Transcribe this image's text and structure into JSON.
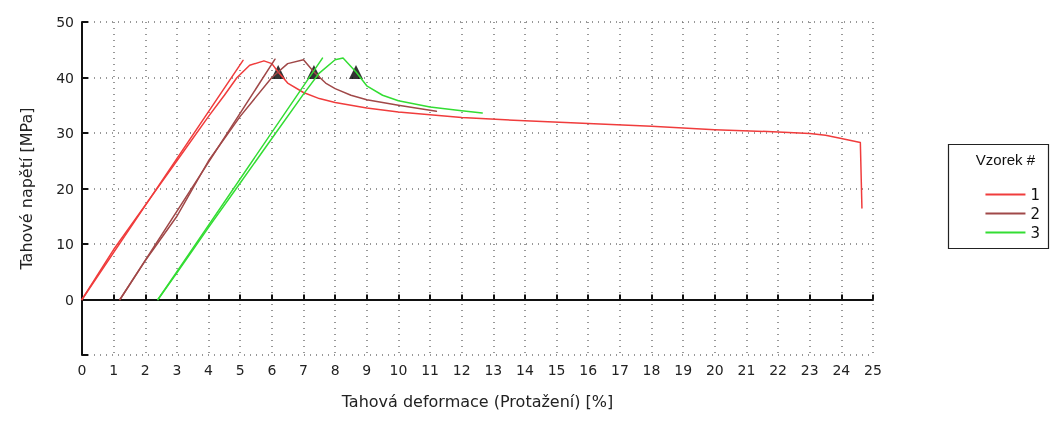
{
  "chart_data": {
    "type": "line",
    "xlabel": "Tahová deformace (Protažení) [%]",
    "ylabel": "Tahové napětí [MPa]",
    "legend_title": "Vzorek #",
    "xlim": [
      0,
      25
    ],
    "xticks": [
      0,
      1,
      2,
      3,
      4,
      5,
      6,
      7,
      8,
      9,
      10,
      11,
      12,
      13,
      14,
      15,
      16,
      17,
      18,
      19,
      20,
      21,
      22,
      23,
      24,
      25
    ],
    "ylim": [
      -10,
      50
    ],
    "yticks": [
      {
        "value": -10,
        "label": null
      },
      0,
      10,
      20,
      30,
      40,
      50
    ],
    "grid": true,
    "legend": "right",
    "marker": "none",
    "line_style": "solid",
    "series": [
      {
        "name": "1",
        "color": "#f03c3c",
        "x": [
          0,
          1,
          2,
          3,
          4,
          4.5,
          4.9,
          5.3,
          5.75,
          6.0,
          6.2,
          6.5,
          7,
          7.5,
          8,
          9,
          10,
          12,
          14,
          16,
          18,
          20,
          22,
          23,
          23.5,
          24,
          24.6,
          24.65
        ],
        "values": [
          0,
          9,
          17,
          25,
          33,
          36.8,
          40,
          42.2,
          43,
          42.5,
          41,
          39,
          37.3,
          36.2,
          35.5,
          34.5,
          33.8,
          32.8,
          32.2,
          31.7,
          31.2,
          30.6,
          30.2,
          29.9,
          29.6,
          29,
          28.3,
          16.5
        ]
      },
      {
        "color": "#f03c3c",
        "x": [
          0,
          5.09
        ],
        "values": [
          0,
          43.1
        ]
      },
      {
        "name": "2",
        "color": "#a04848",
        "x": [
          1.2,
          2,
          3,
          3.2,
          4,
          5,
          6,
          6.5,
          7,
          7.33,
          7.7,
          8,
          8.5,
          9,
          10,
          11.2
        ],
        "values": [
          0,
          7,
          15,
          17,
          25,
          33,
          40,
          42.5,
          43.2,
          41,
          39,
          38,
          36.8,
          36,
          35,
          33.9
        ]
      },
      {
        "color": "#a04848",
        "x": [
          1.2,
          6.1
        ],
        "values": [
          0,
          43.3
        ]
      },
      {
        "name": "3",
        "color": "#33dd33",
        "x": [
          2.4,
          3,
          4,
          5,
          6,
          7,
          7.5,
          8,
          8.25,
          8.66,
          9,
          9.5,
          10,
          11,
          12,
          12.65
        ],
        "values": [
          0,
          4.8,
          13,
          21,
          29,
          37,
          40.8,
          43.2,
          43.5,
          41,
          38.5,
          36.8,
          35.8,
          34.7,
          34,
          33.6
        ]
      },
      {
        "color": "#33dd33",
        "x": [
          2.4,
          7.6
        ],
        "values": [
          0,
          43.5
        ]
      },
      {
        "type": "scatter",
        "marker": "triangle",
        "color": "#000000",
        "x": [
          6.2,
          7.33,
          8.66
        ],
        "values": [
          41,
          41,
          41
        ]
      }
    ]
  }
}
